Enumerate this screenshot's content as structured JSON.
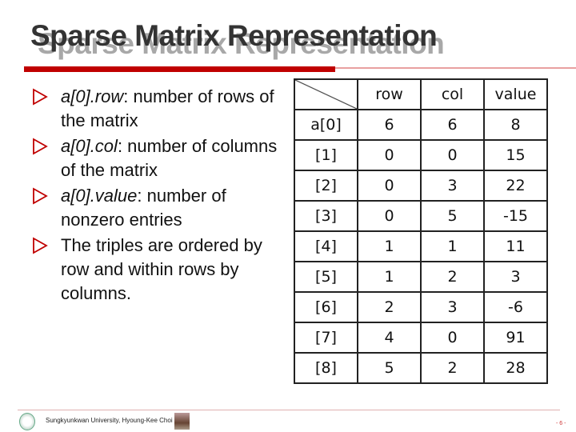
{
  "title": "Sparse Matrix Representation",
  "bullets": [
    {
      "em": "a[0].row",
      "rest": ": number of rows of the matrix"
    },
    {
      "em": "a[0].col",
      "rest": ": number of columns of the matrix"
    },
    {
      "em": "a[0].value",
      "rest": ": number of nonzero entries"
    },
    {
      "em": "",
      "rest": "The triples are ordered by row and within rows by columns."
    }
  ],
  "table": {
    "headers": [
      "row",
      "col",
      "value"
    ],
    "rows": [
      [
        "a[0]",
        "6",
        "6",
        "8"
      ],
      [
        "[1]",
        "0",
        "0",
        "15"
      ],
      [
        "[2]",
        "0",
        "3",
        "22"
      ],
      [
        "[3]",
        "0",
        "5",
        "-15"
      ],
      [
        "[4]",
        "1",
        "1",
        "11"
      ],
      [
        "[5]",
        "1",
        "2",
        "3"
      ],
      [
        "[6]",
        "2",
        "3",
        "-6"
      ],
      [
        "[7]",
        "4",
        "0",
        "91"
      ],
      [
        "[8]",
        "5",
        "2",
        "28"
      ]
    ]
  },
  "footer": {
    "text": "Sungkyunkwan University, Hyoung-Kee Choi",
    "page": "- 6 -"
  },
  "colors": {
    "accent": "#c00000",
    "title": "#333333"
  }
}
